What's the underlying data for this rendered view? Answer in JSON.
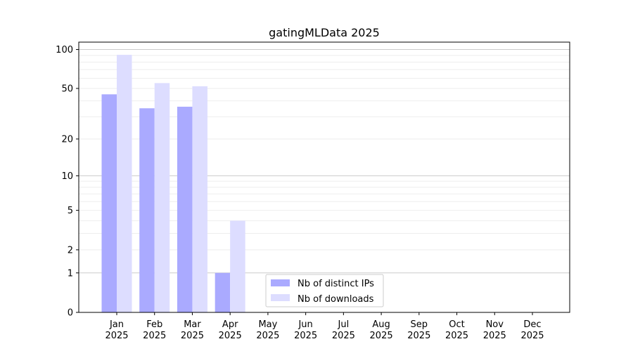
{
  "chart_data": {
    "type": "bar",
    "title": "gatingMLData 2025",
    "xlabel": "",
    "ylabel": "",
    "yscale": "symlog (log10(1+y))",
    "ylim": [
      0,
      114
    ],
    "yticks": [
      0,
      1,
      2,
      5,
      10,
      20,
      50,
      100
    ],
    "grid": true,
    "legend_position": "lower-center",
    "categories": [
      "Jan\n2025",
      "Feb\n2025",
      "Mar\n2025",
      "Apr\n2025",
      "May\n2025",
      "Jun\n2025",
      "Jul\n2025",
      "Aug\n2025",
      "Sep\n2025",
      "Oct\n2025",
      "Nov\n2025",
      "Dec\n2025"
    ],
    "series": [
      {
        "name": "Nb of distinct IPs",
        "color": "#aaaaff",
        "values": [
          45,
          35,
          36,
          1,
          0,
          0,
          0,
          0,
          0,
          0,
          0,
          0
        ]
      },
      {
        "name": "Nb of downloads",
        "color": "#ddddff",
        "values": [
          91,
          55,
          52,
          4,
          0,
          0,
          0,
          0,
          0,
          0,
          0,
          0
        ]
      }
    ]
  }
}
